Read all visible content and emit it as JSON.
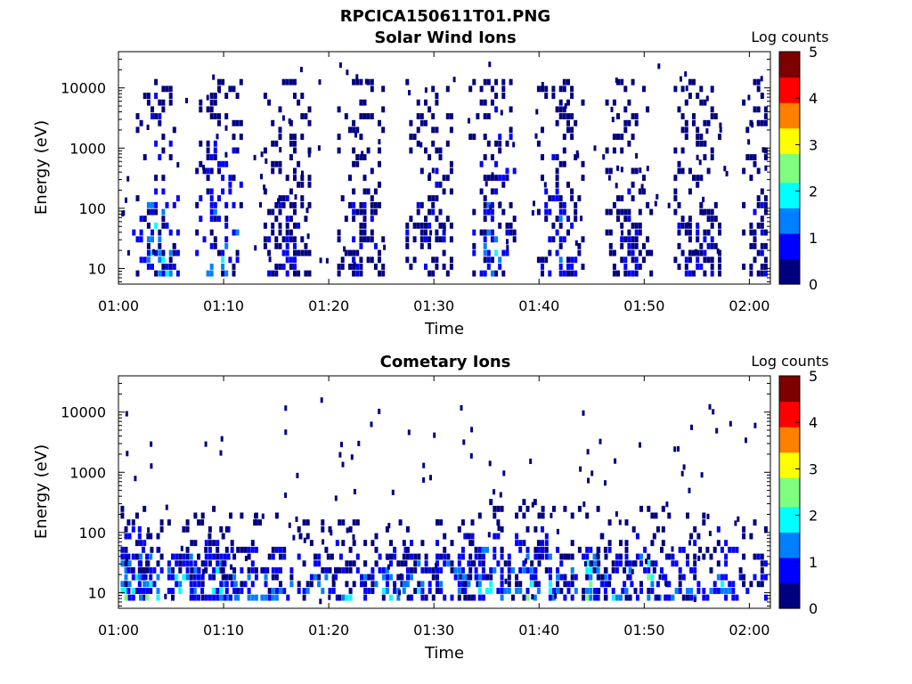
{
  "figure": {
    "filename_title": "RPCICA150611T01.PNG"
  },
  "colormap": [
    "#00007f",
    "#0000ff",
    "#007fff",
    "#00ffff",
    "#7fff7f",
    "#ffff00",
    "#ff7f00",
    "#ff0000",
    "#7f0000"
  ],
  "chart_data": [
    {
      "type": "heatmap",
      "title": "Solar Wind Ions",
      "xlabel": "Time",
      "ylabel": "Energy (eV)",
      "y_scale": "log",
      "xlim": [
        "01:00",
        "02:02"
      ],
      "ylim": [
        5.5,
        40000
      ],
      "x_ticks": [
        "01:00",
        "01:10",
        "01:20",
        "01:30",
        "01:40",
        "01:50",
        "02:00"
      ],
      "y_ticks": [
        "10",
        "100",
        "1000",
        "10000"
      ],
      "colorbar": {
        "label": "Log counts",
        "range": [
          0,
          5
        ],
        "ticks": [
          "0",
          "1",
          "2",
          "3",
          "4",
          "5"
        ]
      },
      "bursts": [
        {
          "time": "01:03.5",
          "e_low": 8,
          "e_high": 18000,
          "peak": 2.2
        },
        {
          "time": "01:09.5",
          "e_low": 8,
          "e_high": 15000,
          "peak": 2.0
        },
        {
          "time": "01:16",
          "e_low": 8,
          "e_high": 16000,
          "peak": 0.8
        },
        {
          "time": "01:23",
          "e_low": 8,
          "e_high": 15000,
          "peak": 0.6
        },
        {
          "time": "01:29.5",
          "e_low": 8,
          "e_high": 14000,
          "peak": 0.6
        },
        {
          "time": "01:35.5",
          "e_low": 8,
          "e_high": 14000,
          "peak": 1.8
        },
        {
          "time": "01:42",
          "e_low": 8,
          "e_high": 15000,
          "peak": 1.4
        },
        {
          "time": "01:48.5",
          "e_low": 8,
          "e_high": 14000,
          "peak": 0.7
        },
        {
          "time": "01:55",
          "e_low": 8,
          "e_high": 14000,
          "peak": 0.7
        },
        {
          "time": "02:01.5",
          "e_low": 8,
          "e_high": 14000,
          "peak": 0.6
        }
      ]
    },
    {
      "type": "heatmap",
      "title": "Cometary Ions",
      "xlabel": "Time",
      "ylabel": "Energy (eV)",
      "y_scale": "log",
      "xlim": [
        "01:00",
        "02:02"
      ],
      "ylim": [
        5.5,
        40000
      ],
      "x_ticks": [
        "01:00",
        "01:10",
        "01:20",
        "01:30",
        "01:40",
        "01:50",
        "02:00"
      ],
      "y_ticks": [
        "10",
        "100",
        "1000",
        "10000"
      ],
      "colorbar": {
        "label": "Log counts",
        "range": [
          0,
          5
        ],
        "ticks": [
          "0",
          "1",
          "2",
          "3",
          "4",
          "5"
        ]
      },
      "bursts": [
        {
          "time": "01:01",
          "e_low": 7,
          "e_high": 300,
          "peak": 2.6
        },
        {
          "time": "01:03",
          "e_low": 7,
          "e_high": 200,
          "peak": 2.8
        },
        {
          "time": "01:06.5",
          "e_low": 7,
          "e_high": 150,
          "peak": 2.8
        },
        {
          "time": "01:09",
          "e_low": 7,
          "e_high": 300,
          "peak": 2.6
        },
        {
          "time": "01:12",
          "e_low": 7,
          "e_high": 200,
          "peak": 2.0
        },
        {
          "time": "01:15",
          "e_low": 7,
          "e_high": 200,
          "peak": 2.0
        },
        {
          "time": "01:19",
          "e_low": 7,
          "e_high": 150,
          "peak": 2.0
        },
        {
          "time": "01:22",
          "e_low": 7,
          "e_high": 150,
          "peak": 2.0
        },
        {
          "time": "01:25.5",
          "e_low": 7,
          "e_high": 250,
          "peak": 2.2
        },
        {
          "time": "01:28.5",
          "e_low": 7,
          "e_high": 150,
          "peak": 2.0
        },
        {
          "time": "01:32",
          "e_low": 7,
          "e_high": 200,
          "peak": 2.1
        },
        {
          "time": "01:35",
          "e_low": 7,
          "e_high": 400,
          "peak": 2.3
        },
        {
          "time": "01:38.5",
          "e_low": 7,
          "e_high": 400,
          "peak": 2.6
        },
        {
          "time": "01:41",
          "e_low": 7,
          "e_high": 250,
          "peak": 2.2
        },
        {
          "time": "01:44.5",
          "e_low": 7,
          "e_high": 350,
          "peak": 2.7
        },
        {
          "time": "01:47",
          "e_low": 7,
          "e_high": 150,
          "peak": 1.8
        },
        {
          "time": "01:50",
          "e_low": 7,
          "e_high": 300,
          "peak": 2.9
        },
        {
          "time": "01:53",
          "e_low": 7,
          "e_high": 250,
          "peak": 2.0
        },
        {
          "time": "01:57",
          "e_low": 7,
          "e_high": 200,
          "peak": 2.0
        },
        {
          "time": "02:01.5",
          "e_low": 7,
          "e_high": 150,
          "peak": 1.5
        }
      ]
    }
  ]
}
